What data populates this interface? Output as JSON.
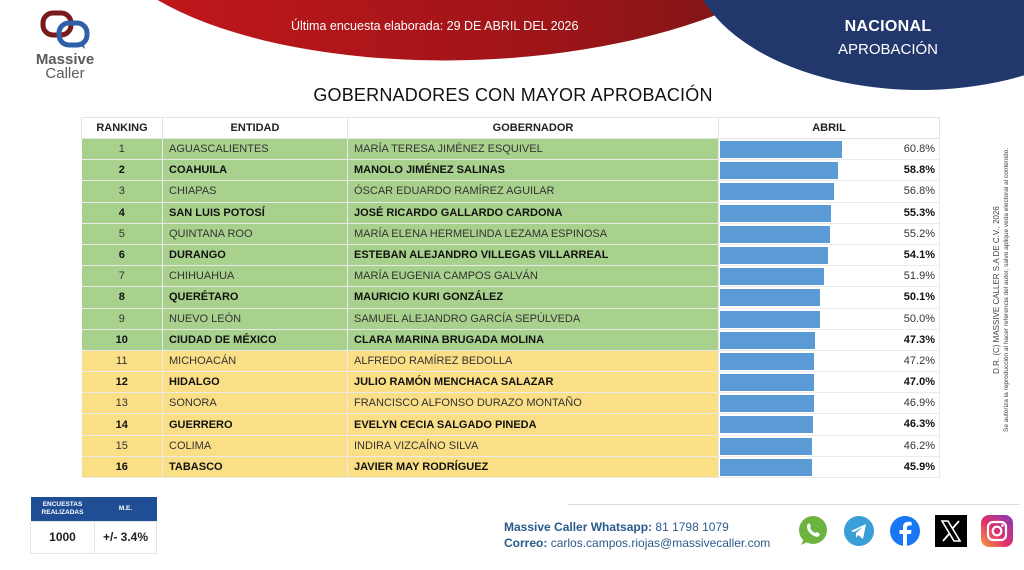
{
  "header": {
    "survey_date": "Última encuesta elaborada: 29 DE ABRIL DEL 2026",
    "scope": "NACIONAL",
    "topic": "APROBACIÓN",
    "logo": {
      "line1": "Massive",
      "line2": "Caller"
    }
  },
  "title": "GOBERNADORES CON MAYOR APROBACIÓN",
  "table": {
    "headers": [
      "RANKING",
      "ENTIDAD",
      "GOBERNADOR",
      "ABRIL"
    ],
    "rows": [
      {
        "rank": "1",
        "entity": "AGUASCALIENTES",
        "governor": "MARÍA TERESA JIMÉNEZ ESQUIVEL",
        "value": 60.8,
        "label": "60.8%",
        "bold": false,
        "tier": "green"
      },
      {
        "rank": "2",
        "entity": "COAHUILA",
        "governor": "MANOLO JIMÉNEZ SALINAS",
        "value": 58.8,
        "label": "58.8%",
        "bold": true,
        "tier": "green"
      },
      {
        "rank": "3",
        "entity": "CHIAPAS",
        "governor": "ÓSCAR EDUARDO RAMÍREZ AGUILAR",
        "value": 56.8,
        "label": "56.8%",
        "bold": false,
        "tier": "green"
      },
      {
        "rank": "4",
        "entity": "SAN LUIS POTOSÍ",
        "governor": "JOSÉ RICARDO GALLARDO CARDONA",
        "value": 55.3,
        "label": "55.3%",
        "bold": true,
        "tier": "green"
      },
      {
        "rank": "5",
        "entity": "QUINTANA ROO",
        "governor": "MARÍA ELENA HERMELINDA LEZAMA ESPINOSA",
        "value": 55.2,
        "label": "55.2%",
        "bold": false,
        "tier": "green"
      },
      {
        "rank": "6",
        "entity": "DURANGO",
        "governor": "ESTEBAN ALEJANDRO VILLEGAS VILLARREAL",
        "value": 54.1,
        "label": "54.1%",
        "bold": true,
        "tier": "green"
      },
      {
        "rank": "7",
        "entity": "CHIHUAHUA",
        "governor": "MARÍA EUGENIA CAMPOS GALVÁN",
        "value": 51.9,
        "label": "51.9%",
        "bold": false,
        "tier": "green"
      },
      {
        "rank": "8",
        "entity": "QUERÉTARO",
        "governor": "MAURICIO KURI GONZÁLEZ",
        "value": 50.1,
        "label": "50.1%",
        "bold": true,
        "tier": "green"
      },
      {
        "rank": "9",
        "entity": "NUEVO LEÓN",
        "governor": "SAMUEL ALEJANDRO GARCÍA SEPÚLVEDA",
        "value": 50.0,
        "label": "50.0%",
        "bold": false,
        "tier": "green"
      },
      {
        "rank": "10",
        "entity": "CIUDAD DE MÉXICO",
        "governor": "CLARA MARINA BRUGADA MOLINA",
        "value": 47.3,
        "label": "47.3%",
        "bold": true,
        "tier": "green"
      },
      {
        "rank": "11",
        "entity": "MICHOACÁN",
        "governor": "ALFREDO RAMÍREZ BEDOLLA",
        "value": 47.2,
        "label": "47.2%",
        "bold": false,
        "tier": "yellow"
      },
      {
        "rank": "12",
        "entity": "HIDALGO",
        "governor": "JULIO RAMÓN MENCHACA SALAZAR",
        "value": 47.0,
        "label": "47.0%",
        "bold": true,
        "tier": "yellow"
      },
      {
        "rank": "13",
        "entity": "SONORA",
        "governor": "FRANCISCO ALFONSO DURAZO MONTAÑO",
        "value": 46.9,
        "label": "46.9%",
        "bold": false,
        "tier": "yellow"
      },
      {
        "rank": "14",
        "entity": "GUERRERO",
        "governor": "EVELYN CECIA SALGADO PINEDA",
        "value": 46.3,
        "label": "46.3%",
        "bold": true,
        "tier": "yellow"
      },
      {
        "rank": "15",
        "entity": "COLIMA",
        "governor": "INDIRA VIZCAÍNO SILVA",
        "value": 46.2,
        "label": "46.2%",
        "bold": false,
        "tier": "yellow"
      },
      {
        "rank": "16",
        "entity": "TABASCO",
        "governor": "JAVIER MAY RODRÍGUEZ",
        "value": 45.9,
        "label": "45.9%",
        "bold": true,
        "tier": "yellow"
      }
    ]
  },
  "chart_data": {
    "type": "bar",
    "orientation": "horizontal",
    "title": "GOBERNADORES CON MAYOR APROBACIÓN",
    "xlabel": "",
    "ylabel": "",
    "series": [
      {
        "name": "ABRIL",
        "values": [
          60.8,
          58.8,
          56.8,
          55.3,
          55.2,
          54.1,
          51.9,
          50.1,
          50.0,
          47.3,
          47.2,
          47.0,
          46.9,
          46.3,
          46.2,
          45.9
        ]
      }
    ],
    "categories": [
      "AGUASCALIENTES",
      "COAHUILA",
      "CHIAPAS",
      "SAN LUIS POTOSÍ",
      "QUINTANA ROO",
      "DURANGO",
      "CHIHUAHUA",
      "QUERÉTARO",
      "NUEVO LEÓN",
      "CIUDAD DE MÉXICO",
      "MICHOACÁN",
      "HIDALGO",
      "SONORA",
      "GUERRERO",
      "COLIMA",
      "TABASCO"
    ],
    "value_format": "percent",
    "grid": false,
    "legend": "none",
    "colors": {
      "bar": "#5b9bd5",
      "top10_row": "#a9d18e",
      "rest_row": "#fbdf87"
    }
  },
  "copyright": {
    "line1": "D.R. (C) MASSIVE CALLER S.A DE C.V., 2026",
    "line2": "Se autoriza la reproducción al hacer referencia del autor, salvo aplique veda electoral al contenido."
  },
  "stats": {
    "headers": [
      "ENCUESTAS REALIZADAS",
      "M.E."
    ],
    "values": [
      "1000",
      "+/- 3.4%"
    ]
  },
  "contact": {
    "whatsapp_label": "Massive Caller Whatsapp:",
    "whatsapp_number": "81 1798 1079",
    "email_label": "Correo:",
    "email": "carlos.campos.riojas@massivecaller.com"
  },
  "socials": [
    "whatsapp-icon",
    "telegram-icon",
    "facebook-icon",
    "x-icon",
    "instagram-icon"
  ],
  "colors": {
    "red": "#c4161c",
    "navy": "#22386c",
    "bar": "#5b9bd5",
    "green": "#a9d18e",
    "yellow": "#fbdf87",
    "stats_header": "#1f4e95"
  }
}
